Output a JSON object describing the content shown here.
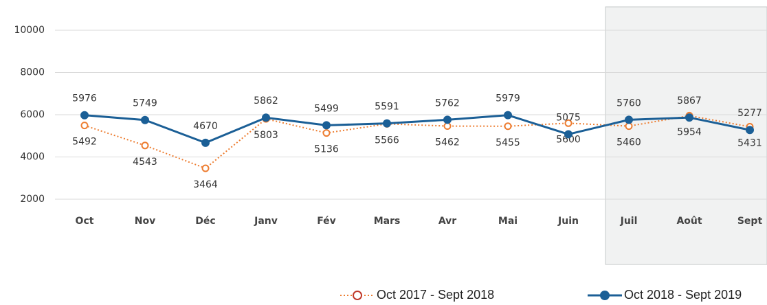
{
  "chart_data": {
    "type": "line",
    "categories": [
      "Oct",
      "Nov",
      "Déc",
      "Janv",
      "Fév",
      "Mars",
      "Avr",
      "Mai",
      "Juin",
      "Juil",
      "Août",
      "Sept"
    ],
    "series": [
      {
        "name": "Oct 2017 - Sept 2018",
        "color": "#ed7d31",
        "values": [
          5492,
          4543,
          3464,
          5803,
          5136,
          5566,
          5462,
          5455,
          5600,
          5460,
          5954,
          5431
        ]
      },
      {
        "name": "Oct 2018 - Sept 2019",
        "color": "#1b5f96",
        "values": [
          5976,
          5749,
          4670,
          5862,
          5499,
          5591,
          5762,
          5979,
          5075,
          5760,
          5867,
          5277
        ]
      }
    ],
    "ylim": [
      2000,
      10000
    ],
    "yticks": [
      2000,
      4000,
      6000,
      8000,
      10000
    ],
    "grid": true
  }
}
